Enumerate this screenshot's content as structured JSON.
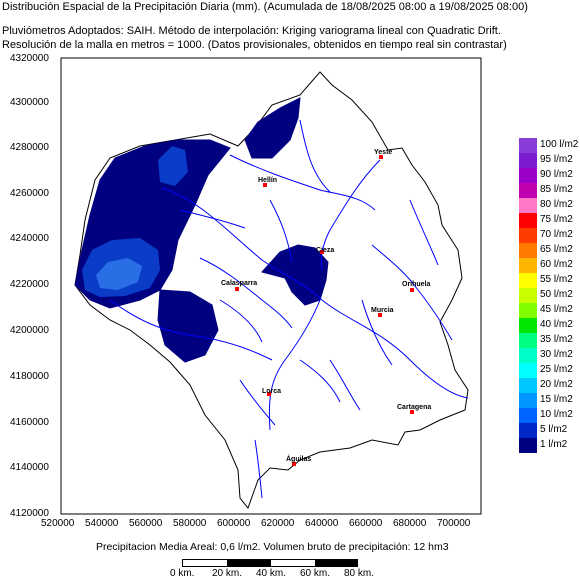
{
  "header": {
    "line1": "Distribución Espacial de la Precipitación Diaria (mm). (Acumulada de 18/08/2025 08:00 a 19/08/2025 08:00)",
    "line2": "Pluviómetros Adoptados: SAIH.  Método de interpolación: Kriging variograma lineal con Quadratic Drift.",
    "line3": "Resolución de la malla en metros = 1000. (Datos provisionales, obtenidos en tiempo real sin contrastar)"
  },
  "map": {
    "y_axis_ticks": [
      "4320000",
      "4300000",
      "4280000",
      "4260000",
      "4240000",
      "4220000",
      "4200000",
      "4180000",
      "4160000",
      "4140000",
      "4120000"
    ],
    "x_axis_ticks": [
      "520000",
      "540000",
      "560000",
      "580000",
      "600000",
      "620000",
      "640000",
      "660000",
      "680000",
      "700000"
    ],
    "towns": [
      {
        "name": "Yeste"
      },
      {
        "name": "Hellín"
      },
      {
        "name": "Cieza"
      },
      {
        "name": "Calasparra"
      },
      {
        "name": "Orihuela"
      },
      {
        "name": "Murcia"
      },
      {
        "name": "Lorca"
      },
      {
        "name": "Cartagena"
      },
      {
        "name": "Águilas"
      }
    ],
    "colors": {
      "basin_outline": "#000000",
      "rivers": "#0000ff",
      "precip_1": "#000080",
      "precip_5": "#0a3cc8",
      "precip_10": "#2a6ee6",
      "town_marker": "#ff0000"
    }
  },
  "legend": {
    "items": [
      {
        "label": "100 l/m2",
        "color": "#8a3cd8"
      },
      {
        "label": "95 l/m2",
        "color": "#7c1cd0"
      },
      {
        "label": "90 l/m2",
        "color": "#9a00c8"
      },
      {
        "label": "85 l/m2",
        "color": "#c000b0"
      },
      {
        "label": "80 l/m2",
        "color": "#ff78c8"
      },
      {
        "label": "75 l/m2",
        "color": "#ff0000"
      },
      {
        "label": "70 l/m2",
        "color": "#ff3c00"
      },
      {
        "label": "65 l/m2",
        "color": "#ff7800"
      },
      {
        "label": "60 l/m2",
        "color": "#ffb400"
      },
      {
        "label": "55 l/m2",
        "color": "#ffff00"
      },
      {
        "label": "50 l/m2",
        "color": "#c8ff00"
      },
      {
        "label": "45 l/m2",
        "color": "#80ff00"
      },
      {
        "label": "40 l/m2",
        "color": "#00e600"
      },
      {
        "label": "35 l/m2",
        "color": "#00ff80"
      },
      {
        "label": "30 l/m2",
        "color": "#00ffc8"
      },
      {
        "label": "25 l/m2",
        "color": "#00ffff"
      },
      {
        "label": "20 l/m2",
        "color": "#00c8ff"
      },
      {
        "label": "15 l/m2",
        "color": "#0096ff"
      },
      {
        "label": "10 l/m2",
        "color": "#0064ff"
      },
      {
        "label": "5 l/m2",
        "color": "#0028c8"
      },
      {
        "label": "1 l/m2",
        "color": "#000080"
      }
    ]
  },
  "footer": {
    "text": "Precipitacion Media Areal: 0,6 l/m2. Volumen bruto de precipitación: 12 hm3"
  },
  "scale": {
    "labels": [
      "0 km.",
      "20 km.",
      "40 km.",
      "60 km.",
      "80 km."
    ]
  }
}
